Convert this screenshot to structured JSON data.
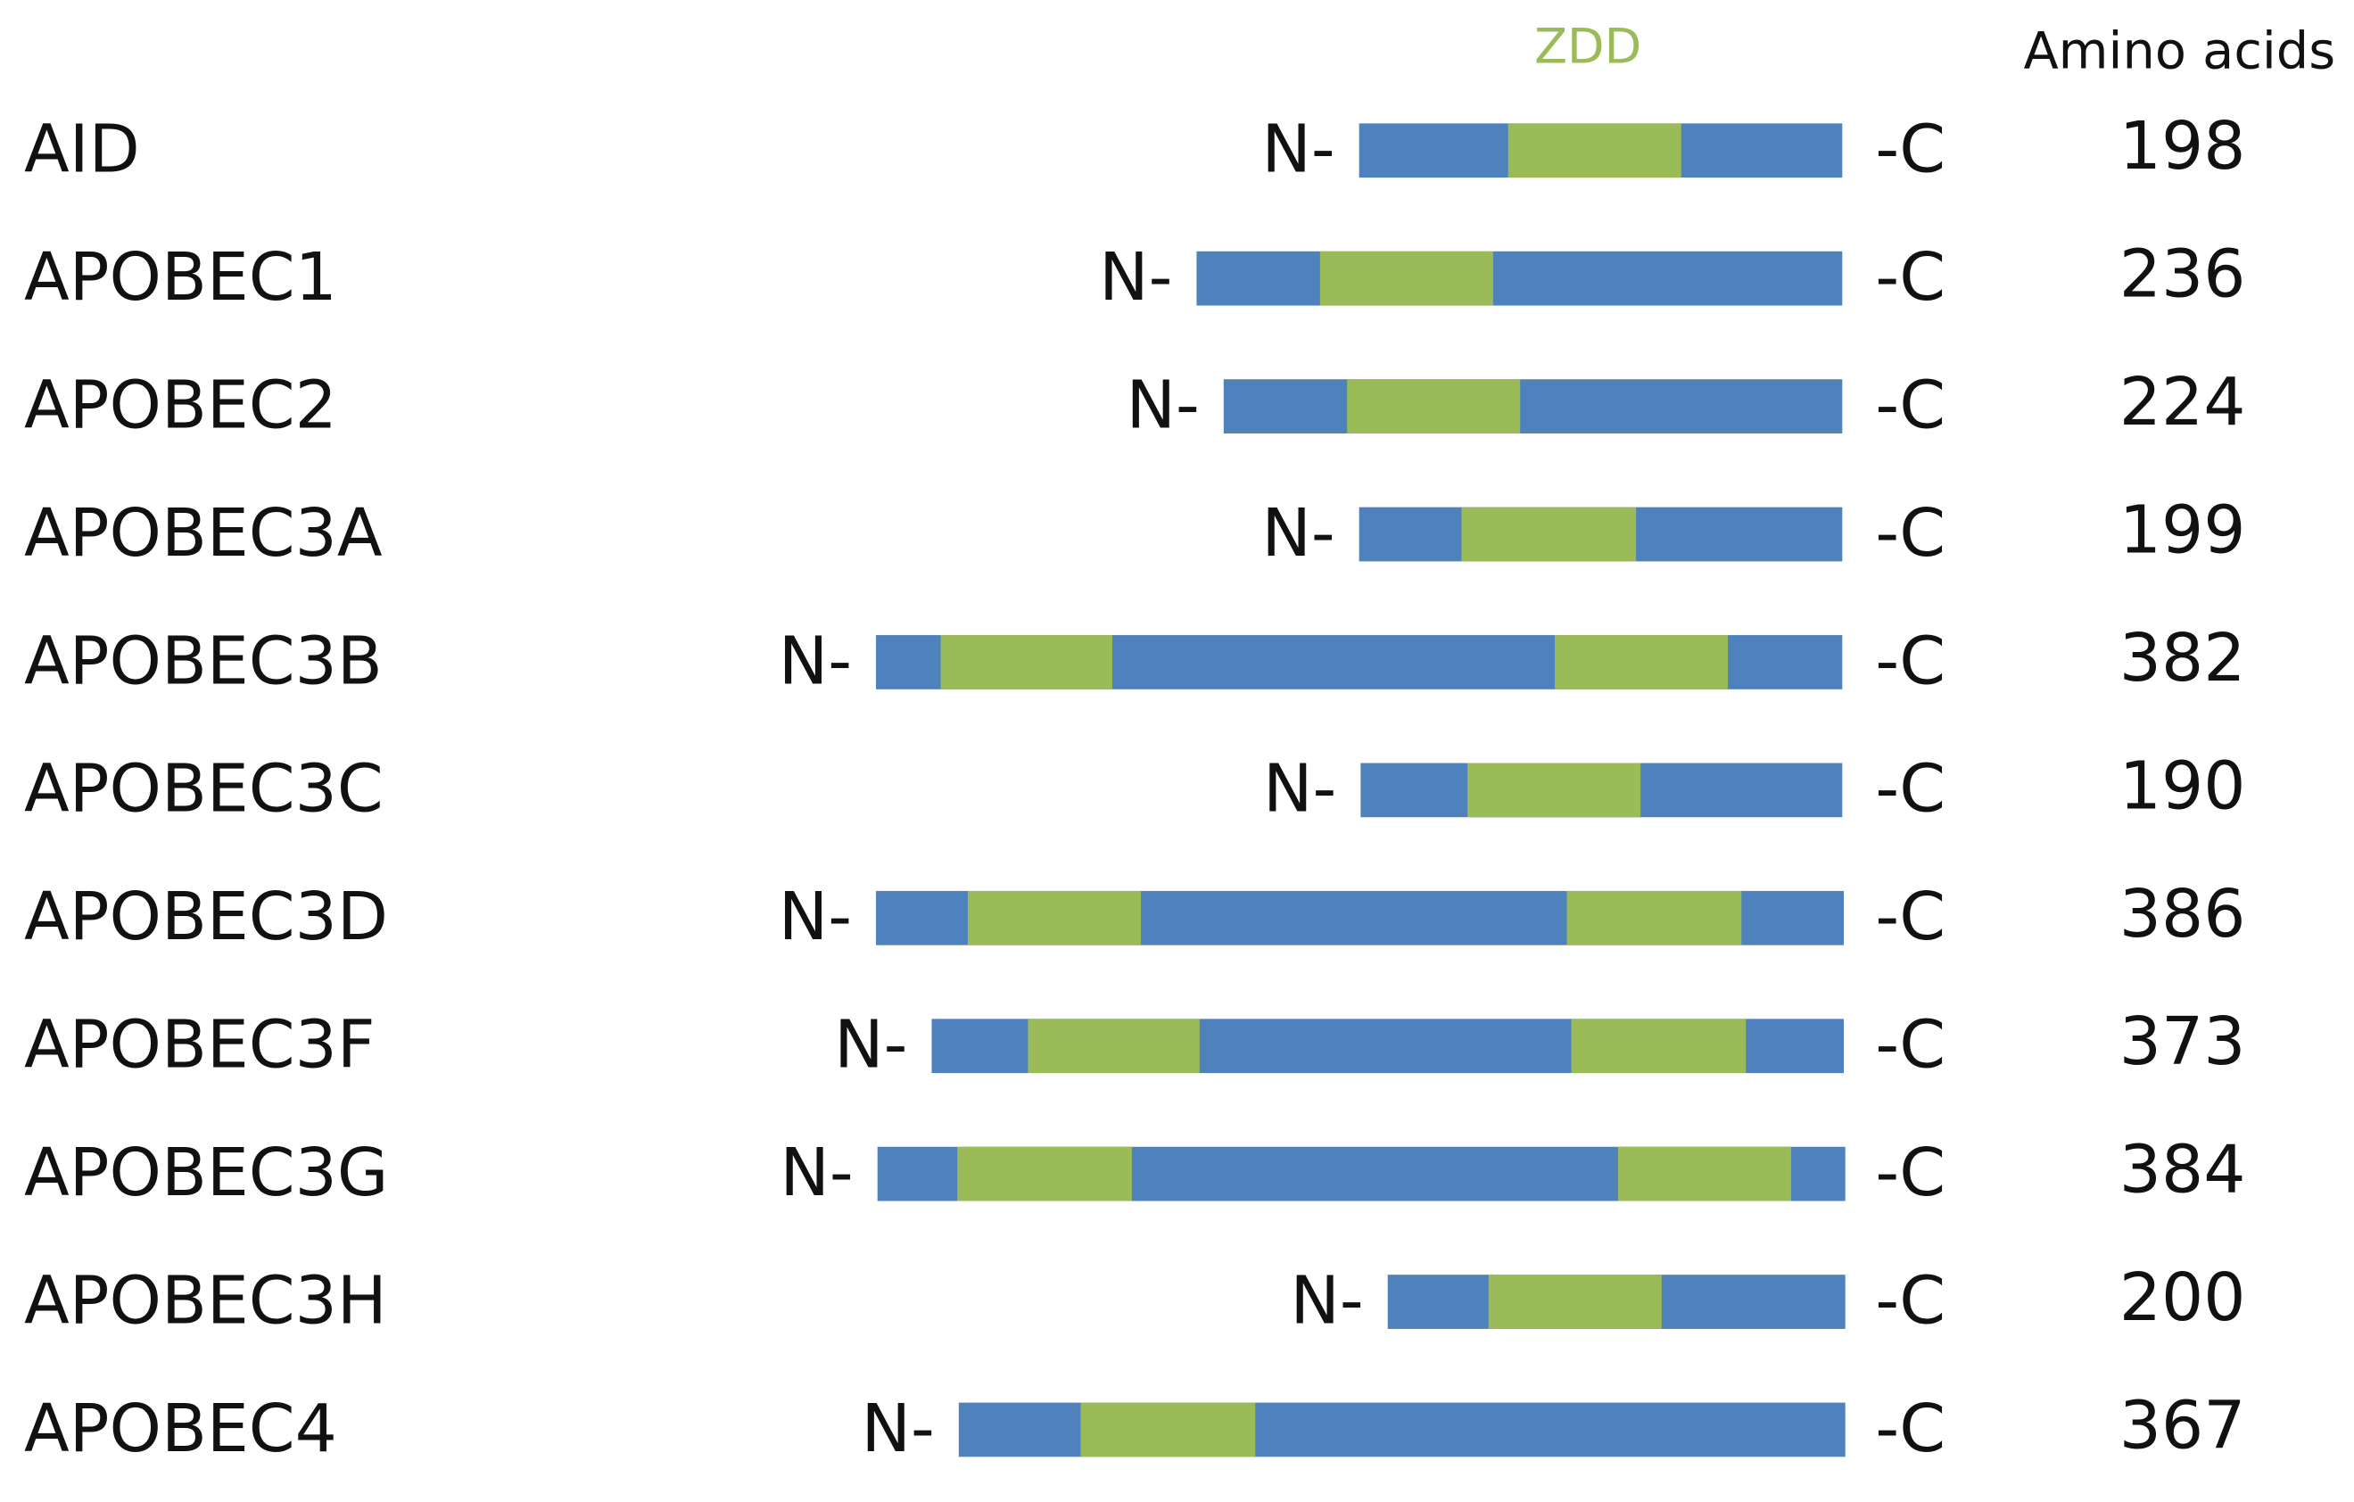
{
  "header": {
    "domain_label": "ZDD",
    "length_label": "Amino acids"
  },
  "rows": [
    {
      "name": "AID",
      "n_terminus": "N-",
      "c_terminus": "-C",
      "amino_acids": "198"
    },
    {
      "name": "APOBEC1",
      "n_terminus": "N-",
      "c_terminus": "-C",
      "amino_acids": "236"
    },
    {
      "name": "APOBEC2",
      "n_terminus": "N-",
      "c_terminus": "-C",
      "amino_acids": "224"
    },
    {
      "name": "APOBEC3A",
      "n_terminus": "N-",
      "c_terminus": "-C",
      "amino_acids": "199"
    },
    {
      "name": "APOBEC3B",
      "n_terminus": "N-",
      "c_terminus": "-C",
      "amino_acids": "382"
    },
    {
      "name": "APOBEC3C",
      "n_terminus": "N-",
      "c_terminus": "-C",
      "amino_acids": "190"
    },
    {
      "name": "APOBEC3D",
      "n_terminus": "N-",
      "c_terminus": "-C",
      "amino_acids": "386"
    },
    {
      "name": "APOBEC3F",
      "n_terminus": "N-",
      "c_terminus": "-C",
      "amino_acids": "373"
    },
    {
      "name": "APOBEC3G",
      "n_terminus": "N-",
      "c_terminus": "-C",
      "amino_acids": "384"
    },
    {
      "name": "APOBEC3H",
      "n_terminus": "N-",
      "c_terminus": "-C",
      "amino_acids": "200"
    },
    {
      "name": "APOBEC4",
      "n_terminus": "N-",
      "c_terminus": "-C",
      "amino_acids": "367"
    }
  ]
}
